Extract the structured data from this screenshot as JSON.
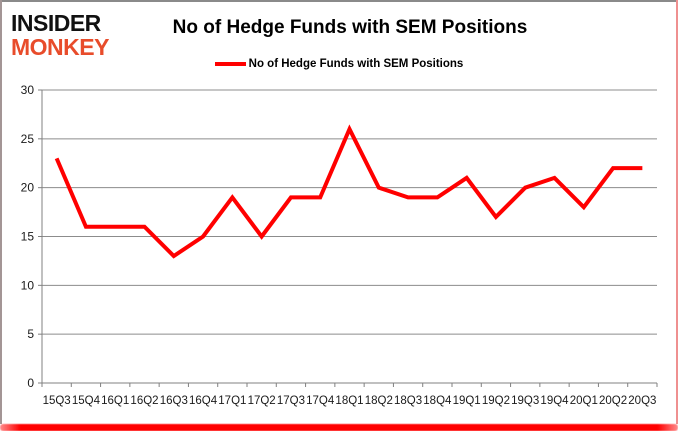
{
  "header": {
    "logo_line1": "INSIDER",
    "logo_line2": "MONKEY",
    "title": "No of Hedge Funds with SEM Positions",
    "legend_label": "No of Hedge Funds with SEM Positions"
  },
  "colors": {
    "line": "#ff0000",
    "gridline": "#8c8c8c",
    "axis": "#808080",
    "tick_text": "#1a1a1a",
    "logo_black": "#111111",
    "logo_red": "#e84c2b",
    "bottom_bar": "#ff0000"
  },
  "chart_data": {
    "type": "line",
    "title": "No of Hedge Funds with SEM Positions",
    "categories": [
      "15Q3",
      "15Q4",
      "16Q1",
      "16Q2",
      "16Q3",
      "16Q4",
      "17Q1",
      "17Q2",
      "17Q3",
      "17Q4",
      "18Q1",
      "18Q2",
      "18Q3",
      "18Q4",
      "19Q1",
      "19Q2",
      "19Q3",
      "19Q4",
      "20Q1",
      "20Q2",
      "20Q3"
    ],
    "series": [
      {
        "name": "No of Hedge Funds with SEM Positions",
        "values": [
          23,
          16,
          16,
          16,
          13,
          15,
          19,
          15,
          19,
          19,
          26,
          20,
          19,
          19,
          21,
          17,
          20,
          21,
          18,
          22,
          22
        ]
      }
    ],
    "xlabel": "",
    "ylabel": "",
    "ylim": [
      0,
      30
    ],
    "ytick_step": 5,
    "grid": true,
    "legend_position": "top"
  }
}
